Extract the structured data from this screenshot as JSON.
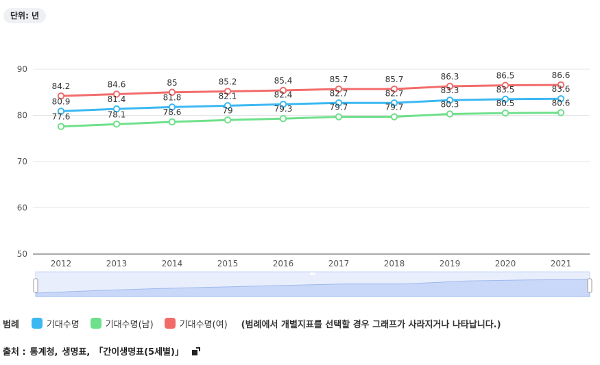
{
  "unit_label": "단위: 년",
  "chart_data": {
    "type": "line",
    "title": "",
    "xlabel": "",
    "ylabel": "",
    "ylim": [
      50,
      90
    ],
    "yticks": [
      50,
      60,
      70,
      80,
      90
    ],
    "categories": [
      "2012",
      "2013",
      "2014",
      "2015",
      "2016",
      "2017",
      "2018",
      "2019",
      "2020",
      "2021"
    ],
    "series": [
      {
        "name": "기대수명",
        "color": "#3bb8f2",
        "values": [
          80.9,
          81.4,
          81.8,
          82.1,
          82.4,
          82.7,
          82.7,
          83.3,
          83.5,
          83.6
        ]
      },
      {
        "name": "기대수명(남)",
        "color": "#6ee08a",
        "values": [
          77.6,
          78.1,
          78.6,
          79,
          79.3,
          79.7,
          79.7,
          80.3,
          80.5,
          80.6
        ]
      },
      {
        "name": "기대수명(여)",
        "color": "#f26b6b",
        "values": [
          84.2,
          84.6,
          85,
          85.2,
          85.4,
          85.7,
          85.7,
          86.3,
          86.5,
          86.6
        ]
      }
    ]
  },
  "legend": {
    "title": "범례",
    "note": "(범례에서 개별지표를 선택할 경우 그래프가 사라지거나 나타납니다.)"
  },
  "source": {
    "label": "출처 :",
    "items": [
      "통계청,",
      "생명표,",
      "「간이생명표(5세별)」"
    ]
  }
}
